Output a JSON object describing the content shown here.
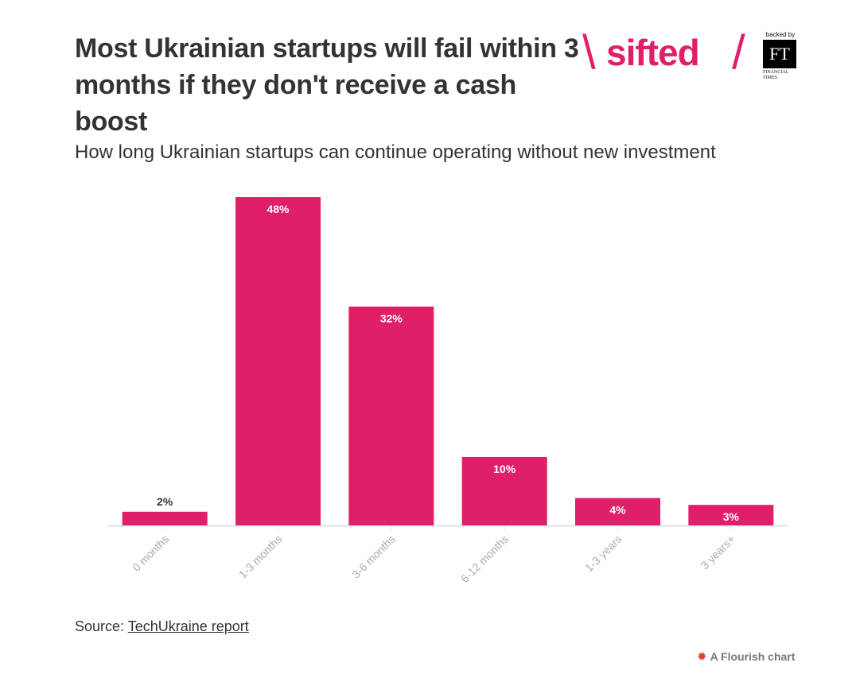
{
  "header": {
    "title": "Most Ukrainian startups will fail within 3 months if they don't receive a cash boost",
    "subtitle": "How long Ukrainian startups can continue operating without new investment"
  },
  "logo": {
    "wordmark": "sifted",
    "slash_left": "\\",
    "slash_right": "/",
    "backed_by": "backed by",
    "ft_mark": "FT",
    "ft_name_line1": "FINANCIAL",
    "ft_name_line2": "TIMES",
    "brand_color": "#e01f69"
  },
  "chart_data": {
    "type": "bar",
    "title": "How long Ukrainian startups can continue operating without new investment",
    "categories": [
      "0 months",
      "1-3 months",
      "3-6 months",
      "6-12 months",
      "1-3 years",
      "3 years+"
    ],
    "values": [
      2,
      48,
      32,
      10,
      4,
      3
    ],
    "value_labels": [
      "2%",
      "48%",
      "32%",
      "10%",
      "4%",
      "3%"
    ],
    "unit": "%",
    "ylim": [
      0,
      48
    ],
    "grid": false,
    "bar_color": "#e01f69",
    "xlabel": "",
    "ylabel": ""
  },
  "footer": {
    "source_prefix": "Source: ",
    "source_link": "TechUkraine report",
    "flourish_icon": "flourish-star-icon",
    "flourish_label": "A Flourish chart"
  }
}
